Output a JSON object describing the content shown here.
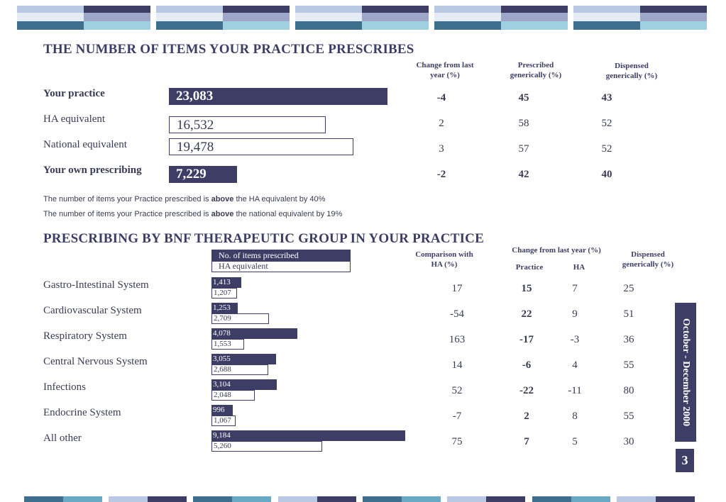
{
  "section1": {
    "title": "THE NUMBER OF ITEMS YOUR PRACTICE PRESCRIBES",
    "col_change": "Change from last year (%)",
    "col_prescribed_generic": "Prescribed generically (%)",
    "col_dispensed_generic": "Dispensed generically (%)",
    "rows": [
      {
        "label": "Your practice",
        "value": "23,083",
        "value_num": 23083,
        "change": "-4",
        "prescribed": "45",
        "dispensed": "43"
      },
      {
        "label": "HA equivalent",
        "value": "16,532",
        "value_num": 16532,
        "change": "2",
        "prescribed": "58",
        "dispensed": "52"
      },
      {
        "label": "National equivalent",
        "value": "19,478",
        "value_num": 19478,
        "change": "3",
        "prescribed": "57",
        "dispensed": "52"
      },
      {
        "label": "Your own prescribing",
        "value": "7,229",
        "value_num": 7229,
        "change": "-2",
        "prescribed": "42",
        "dispensed": "40"
      }
    ],
    "note1_pre": "The number of items your Practice prescribed is ",
    "note1_bold": "above",
    "note1_post": " the HA equivalent by 40%",
    "note2_pre": "The number of items your Practice prescribed is ",
    "note2_bold": "above",
    "note2_post": " the national equivalent by 19%"
  },
  "section2": {
    "title": "PRESCRIBING BY BNF THERAPEUTIC GROUP IN YOUR PRACTICE",
    "legend_items": "No. of items prescribed",
    "legend_ha": "HA equivalent",
    "col_comparison": "Comparison with HA (%)",
    "col_change": "Change from last year (%)",
    "col_practice": "Practice",
    "col_ha": "HA",
    "col_dispensed": "Dispensed generically (%)",
    "rows": [
      {
        "label": "Gastro-Intestinal System",
        "items": "1,413",
        "items_num": 1413,
        "ha": "1,207",
        "ha_num": 1207,
        "comparison": "17",
        "practice": "15",
        "ha_change": "7",
        "dispensed": "25"
      },
      {
        "label": "Cardiovascular System",
        "items": "1,253",
        "items_num": 1253,
        "ha": "2,709",
        "ha_num": 2709,
        "comparison": "-54",
        "practice": "22",
        "ha_change": "9",
        "dispensed": "51"
      },
      {
        "label": "Respiratory System",
        "items": "4,078",
        "items_num": 4078,
        "ha": "1,553",
        "ha_num": 1553,
        "comparison": "163",
        "practice": "-17",
        "ha_change": "-3",
        "dispensed": "36"
      },
      {
        "label": "Central Nervous System",
        "items": "3,055",
        "items_num": 3055,
        "ha": "2,688",
        "ha_num": 2688,
        "comparison": "14",
        "practice": "-6",
        "ha_change": "4",
        "dispensed": "55"
      },
      {
        "label": "Infections",
        "items": "3,104",
        "items_num": 3104,
        "ha": "2,048",
        "ha_num": 2048,
        "comparison": "52",
        "practice": "-22",
        "ha_change": "-11",
        "dispensed": "80"
      },
      {
        "label": "Endocrine System",
        "items": "996",
        "items_num": 996,
        "ha": "1,067",
        "ha_num": 1067,
        "comparison": "-7",
        "practice": "2",
        "ha_change": "8",
        "dispensed": "55"
      },
      {
        "label": "All other",
        "items": "9,184",
        "items_num": 9184,
        "ha": "5,260",
        "ha_num": 5260,
        "comparison": "75",
        "practice": "7",
        "ha_change": "5",
        "dispensed": "30"
      }
    ]
  },
  "side_tab": "October - December 2000",
  "page_number": "3",
  "colors": {
    "navy": "#3d3d66",
    "light_blue": "#b9c9e3",
    "teal": "#3f6f8e",
    "cyan": "#9ed0df"
  }
}
